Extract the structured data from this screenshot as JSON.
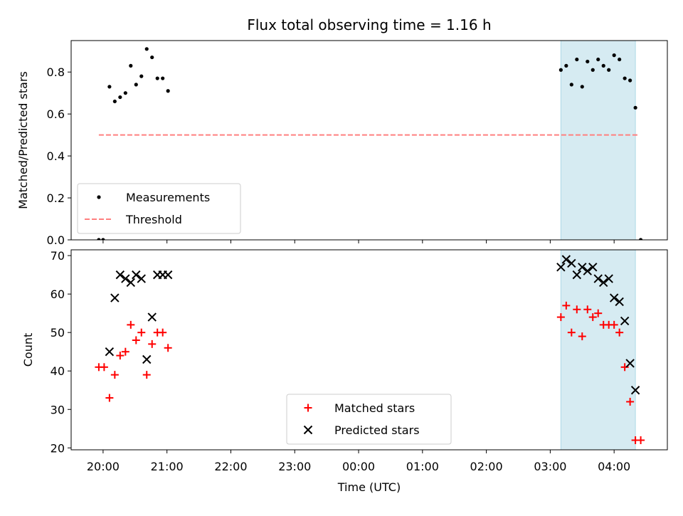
{
  "chart_data": {
    "title": "Flux total observing time = 1.16 h",
    "shaded_region": {
      "x0": "03:10",
      "x1": "04:20",
      "color": "#add8e6"
    },
    "x_axis": {
      "label": "Time (UTC)",
      "tick_labels": [
        "20:00",
        "21:00",
        "22:00",
        "23:00",
        "00:00",
        "01:00",
        "02:00",
        "03:00",
        "04:00"
      ],
      "range": [
        "19:30",
        "04:50"
      ]
    },
    "panels": [
      {
        "type": "scatter",
        "ylabel": "Matched/Predicted stars",
        "ylim": [
          0.0,
          0.95
        ],
        "yticks": [
          "0.0",
          "0.2",
          "0.4",
          "0.6",
          "0.8"
        ],
        "legend_location": "lower-left",
        "series": [
          {
            "name": "Measurements",
            "marker": "dot",
            "color": "#000000",
            "points": [
              [
                "19:56",
                0.0
              ],
              [
                "20:00",
                0.0
              ],
              [
                "20:06",
                0.73
              ],
              [
                "20:11",
                0.66
              ],
              [
                "20:16",
                0.68
              ],
              [
                "20:21",
                0.7
              ],
              [
                "20:26",
                0.83
              ],
              [
                "20:31",
                0.74
              ],
              [
                "20:36",
                0.78
              ],
              [
                "20:41",
                0.91
              ],
              [
                "20:46",
                0.87
              ],
              [
                "20:51",
                0.77
              ],
              [
                "20:56",
                0.77
              ],
              [
                "21:01",
                0.71
              ],
              [
                "03:10",
                0.81
              ],
              [
                "03:15",
                0.83
              ],
              [
                "03:20",
                0.74
              ],
              [
                "03:25",
                0.86
              ],
              [
                "03:30",
                0.73
              ],
              [
                "03:35",
                0.85
              ],
              [
                "03:40",
                0.81
              ],
              [
                "03:45",
                0.86
              ],
              [
                "03:50",
                0.83
              ],
              [
                "03:55",
                0.81
              ],
              [
                "04:00",
                0.88
              ],
              [
                "04:05",
                0.86
              ],
              [
                "04:10",
                0.77
              ],
              [
                "04:15",
                0.76
              ],
              [
                "04:20",
                0.63
              ],
              [
                "04:25",
                0.0
              ]
            ]
          },
          {
            "name": "Threshold",
            "type": "line",
            "style": "dashed",
            "color": "#ff7f7f",
            "points": [
              [
                "19:56",
                0.5
              ],
              [
                "04:22",
                0.5
              ]
            ]
          }
        ]
      },
      {
        "type": "scatter",
        "ylabel": "Count",
        "ylim": [
          19.5,
          71.5
        ],
        "yticks": [
          "20",
          "30",
          "40",
          "50",
          "60",
          "70"
        ],
        "legend_location": "lower-center",
        "series": [
          {
            "name": "Matched stars",
            "marker": "plus",
            "color": "#ff0000",
            "points": [
              [
                "19:56",
                41
              ],
              [
                "20:01",
                41
              ],
              [
                "20:06",
                33
              ],
              [
                "20:11",
                39
              ],
              [
                "20:16",
                44
              ],
              [
                "20:21",
                45
              ],
              [
                "20:26",
                52
              ],
              [
                "20:31",
                48
              ],
              [
                "20:36",
                50
              ],
              [
                "20:41",
                39
              ],
              [
                "20:46",
                47
              ],
              [
                "20:51",
                50
              ],
              [
                "20:56",
                50
              ],
              [
                "21:01",
                46
              ],
              [
                "03:10",
                54
              ],
              [
                "03:15",
                57
              ],
              [
                "03:20",
                50
              ],
              [
                "03:25",
                56
              ],
              [
                "03:30",
                49
              ],
              [
                "03:35",
                56
              ],
              [
                "03:40",
                54
              ],
              [
                "03:45",
                55
              ],
              [
                "03:50",
                52
              ],
              [
                "03:55",
                52
              ],
              [
                "04:00",
                52
              ],
              [
                "04:05",
                50
              ],
              [
                "04:10",
                41
              ],
              [
                "04:15",
                32
              ],
              [
                "04:20",
                22
              ],
              [
                "04:25",
                22
              ]
            ]
          },
          {
            "name": "Predicted stars",
            "marker": "x",
            "color": "#000000",
            "points": [
              [
                "20:06",
                45
              ],
              [
                "20:11",
                59
              ],
              [
                "20:16",
                65
              ],
              [
                "20:21",
                64
              ],
              [
                "20:26",
                63
              ],
              [
                "20:31",
                65
              ],
              [
                "20:36",
                64
              ],
              [
                "20:41",
                43
              ],
              [
                "20:46",
                54
              ],
              [
                "20:51",
                65
              ],
              [
                "20:56",
                65
              ],
              [
                "21:01",
                65
              ],
              [
                "03:10",
                67
              ],
              [
                "03:15",
                69
              ],
              [
                "03:20",
                68
              ],
              [
                "03:25",
                65
              ],
              [
                "03:30",
                67
              ],
              [
                "03:35",
                66
              ],
              [
                "03:40",
                67
              ],
              [
                "03:45",
                64
              ],
              [
                "03:50",
                63
              ],
              [
                "03:55",
                64
              ],
              [
                "04:00",
                59
              ],
              [
                "04:05",
                58
              ],
              [
                "04:10",
                53
              ],
              [
                "04:15",
                42
              ],
              [
                "04:20",
                35
              ]
            ]
          }
        ]
      }
    ]
  }
}
